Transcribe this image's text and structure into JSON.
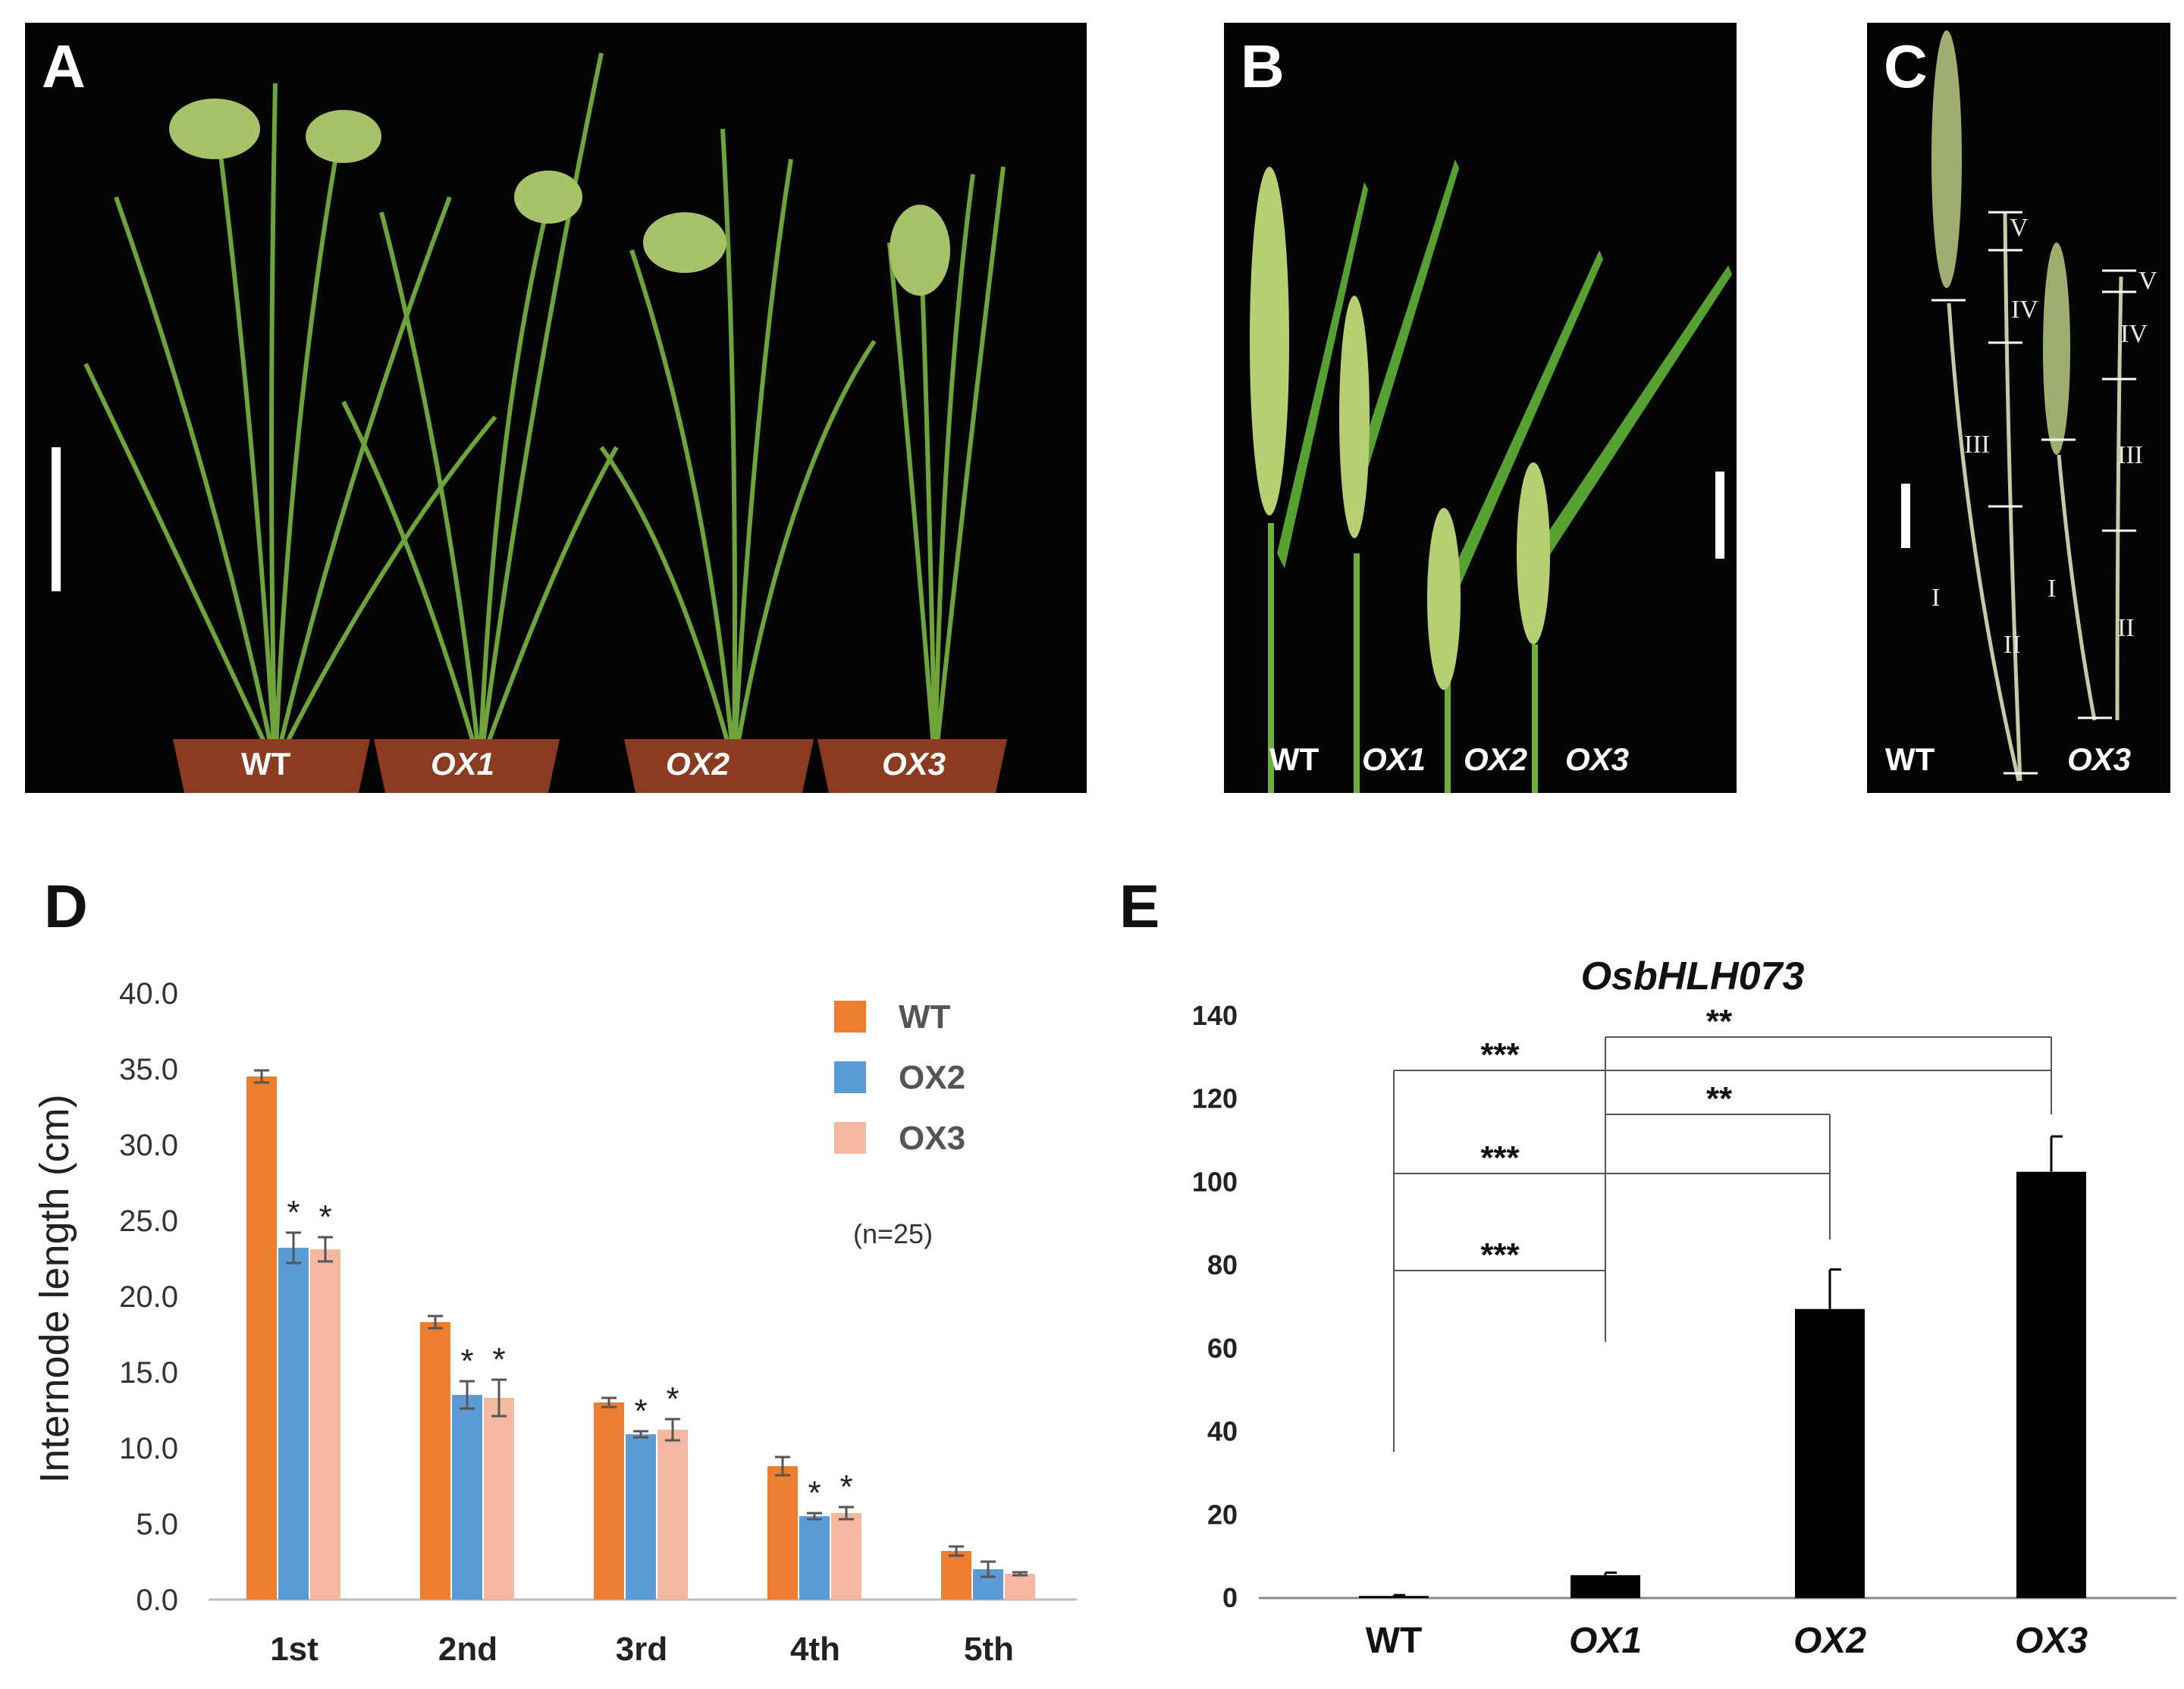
{
  "figure": {
    "panels": {
      "A": {
        "letter": "A",
        "genotypes": [
          "WT",
          "OX1",
          "OX2",
          "OX3"
        ]
      },
      "B": {
        "letter": "B",
        "genotypes": [
          "WT",
          "OX1",
          "OX2",
          "OX3"
        ]
      },
      "C": {
        "letter": "C",
        "genotypes": [
          "WT",
          "OX3"
        ],
        "internodes_wt": [
          "V",
          "IV",
          "III",
          "II",
          "I"
        ],
        "internodes_ox3": [
          "V",
          "IV",
          "III",
          "II",
          "I"
        ]
      },
      "D": {
        "letter": "D"
      },
      "E": {
        "letter": "E"
      }
    },
    "colors": {
      "WT": "#ED7D31",
      "OX2": "#5B9BD5",
      "OX3": "#F4B8A0",
      "bar_E": "#000000",
      "photo_bg": "#050505"
    }
  },
  "chart_data": [
    {
      "panel": "D",
      "type": "bar",
      "title": "",
      "ylabel": "Internode length (cm)",
      "xlabel": "",
      "ylim": [
        0,
        40
      ],
      "yticks": [
        "0.0",
        "5.0",
        "10.0",
        "15.0",
        "20.0",
        "25.0",
        "30.0",
        "35.0",
        "40.0"
      ],
      "categories": [
        "1st",
        "2nd",
        "3rd",
        "4th",
        "5th"
      ],
      "series": [
        {
          "name": "WT",
          "values": [
            34.5,
            18.3,
            13.0,
            8.8,
            3.2
          ],
          "errors": [
            0.4,
            0.4,
            0.3,
            0.6,
            0.3
          ]
        },
        {
          "name": "OX2",
          "values": [
            23.2,
            13.5,
            10.9,
            5.5,
            2.0
          ],
          "errors": [
            1.0,
            0.9,
            0.2,
            0.2,
            0.5
          ]
        },
        {
          "name": "OX3",
          "values": [
            23.1,
            13.3,
            11.2,
            5.7,
            1.7
          ],
          "errors": [
            0.8,
            1.2,
            0.7,
            0.4,
            0.1
          ]
        }
      ],
      "significance": [
        [
          "",
          "*",
          "*"
        ],
        [
          "",
          "*",
          "*"
        ],
        [
          "",
          "*",
          "*"
        ],
        [
          "",
          "*",
          "*"
        ],
        [
          "",
          "",
          ""
        ]
      ],
      "legend": [
        "WT",
        "OX2",
        "OX3"
      ],
      "note": "(n=25)"
    },
    {
      "panel": "E",
      "type": "bar",
      "title": "OsbHLH073",
      "ylabel": "",
      "xlabel": "",
      "ylim": [
        0,
        140
      ],
      "yticks": [
        "0",
        "20",
        "40",
        "60",
        "80",
        "100",
        "120",
        "140"
      ],
      "categories": [
        "WT",
        "OX1",
        "OX2",
        "OX3"
      ],
      "values": [
        0.5,
        5.5,
        69.5,
        102.5
      ],
      "errors": [
        0.2,
        0.6,
        9.5,
        8.5
      ],
      "brackets": [
        {
          "from": "WT",
          "to": "OX1",
          "label": "***"
        },
        {
          "from": "WT",
          "to": "OX2",
          "label": "***"
        },
        {
          "from": "WT",
          "to": "OX3",
          "label": "***"
        },
        {
          "from": "OX1",
          "to": "OX2",
          "label": "**"
        },
        {
          "from": "OX1",
          "to": "OX3",
          "label": "**"
        }
      ]
    }
  ]
}
